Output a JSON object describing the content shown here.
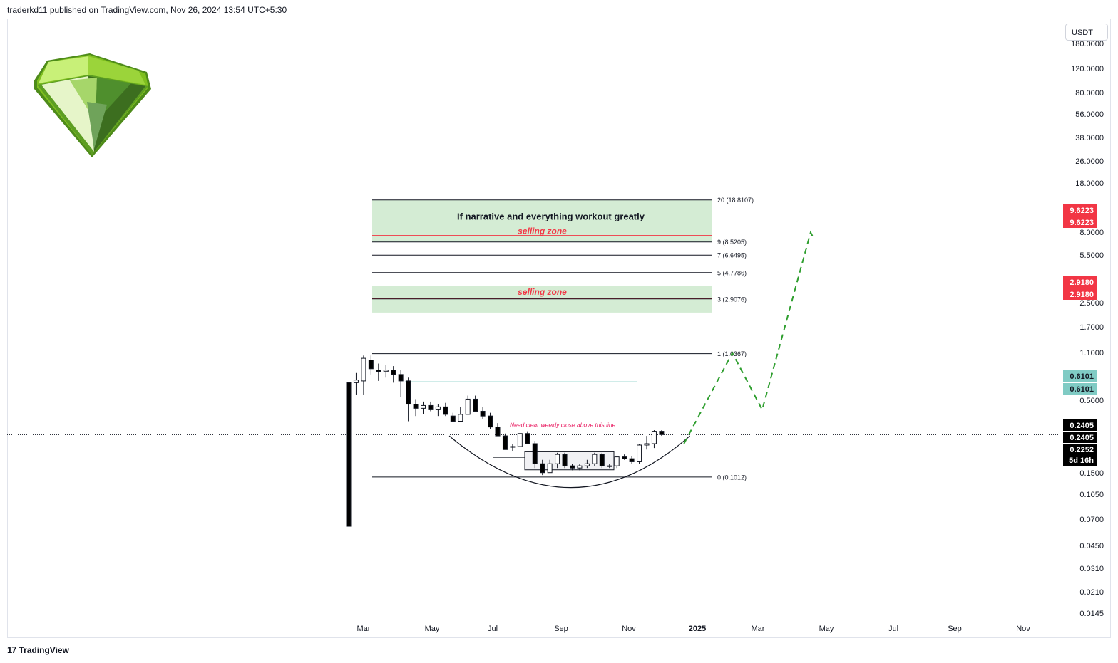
{
  "header": {
    "text": "traderkd11 published on TradingView.com, Nov 26, 2024 13:54 UTC+5:30"
  },
  "footer": {
    "brand": "TradingView",
    "logo_glyph": "17"
  },
  "price_scale": {
    "currency": "USDT",
    "ticks": [
      "180.0000",
      "120.0000",
      "80.0000",
      "56.0000",
      "38.0000",
      "26.0000",
      "18.0000",
      "8.0000",
      "5.5000",
      "2.5000",
      "1.7000",
      "1.1000",
      "0.5000",
      "0.1500",
      "0.1050",
      "0.0700",
      "0.0450",
      "0.0310",
      "0.0210",
      "0.0145"
    ],
    "badges": [
      {
        "text": "9.6223",
        "bg": "#f23645",
        "fg": "#ffffff"
      },
      {
        "text": "9.6223",
        "bg": "#f23645",
        "fg": "#ffffff"
      },
      {
        "text": "2.9180",
        "bg": "#f23645",
        "fg": "#ffffff"
      },
      {
        "text": "2.9180",
        "bg": "#f23645",
        "fg": "#ffffff"
      },
      {
        "text": "0.6101",
        "bg": "#80cbc4",
        "fg": "#131722"
      },
      {
        "text": "0.6101",
        "bg": "#80cbc4",
        "fg": "#131722"
      },
      {
        "text": "0.2405",
        "bg": "#000000",
        "fg": "#ffffff"
      },
      {
        "text": "0.2405",
        "bg": "#000000",
        "fg": "#ffffff"
      },
      {
        "text": "0.2252",
        "bg": "#000000",
        "fg": "#ffffff"
      },
      {
        "text": "5d 16h",
        "bg": "#000000",
        "fg": "#ffffff"
      }
    ]
  },
  "time_axis": {
    "labels": [
      "Mar",
      "May",
      "Jul",
      "Sep",
      "Nov",
      "2025",
      "Mar",
      "May",
      "Jul",
      "Sep",
      "Nov"
    ],
    "bold": [
      false,
      false,
      false,
      false,
      false,
      true,
      false,
      false,
      false,
      false,
      false
    ]
  },
  "annotations": {
    "zone1_title": "If narrative and everything workout greatly",
    "zone1_sub": "selling zone",
    "zone2_sub": "selling zone",
    "weekly_note": "Need clear weekly close above this line"
  },
  "colors": {
    "up": "#ffffff",
    "down": "#000000",
    "zone_fill": "#d4ecd4",
    "projection": "#2e9e2e",
    "red_line": "#f23645",
    "note": "#e91e63",
    "teal_line": "#80cbc4"
  },
  "chart_data": {
    "type": "candlestick",
    "title": "",
    "y_scale": "log",
    "ylim": [
      0.013,
      190
    ],
    "fib_levels": [
      {
        "label": "20 (18.8107)",
        "value": 18.8107
      },
      {
        "label": "9 (8.5205)",
        "value": 8.5205
      },
      {
        "label": "7 (6.6495)",
        "value": 6.6495
      },
      {
        "label": "5 (4.7786)",
        "value": 4.7786
      },
      {
        "label": "3 (2.9076)",
        "value": 2.9076
      },
      {
        "label": "1 (1.0367)",
        "value": 1.0367
      },
      {
        "label": "0 (0.1012)",
        "value": 0.1012
      }
    ],
    "selling_zones": [
      {
        "top": 18.8107,
        "bottom": 8.5205,
        "red_line": 9.6223
      },
      {
        "top": 3.7,
        "bottom": 2.25,
        "red_line": 2.918
      }
    ],
    "resistance_line": 0.6101,
    "weekly_close_line": 0.2405,
    "current_price": 0.2252,
    "range_box": {
      "top": 0.163,
      "bottom": 0.116
    },
    "weekly_candles": [
      {
        "o": 0.6,
        "h": 0.6,
        "l": 0.04,
        "c": 0.04
      },
      {
        "o": 0.6,
        "h": 0.72,
        "l": 0.48,
        "c": 0.63
      },
      {
        "o": 0.62,
        "h": 1.0,
        "l": 0.48,
        "c": 0.95
      },
      {
        "o": 0.92,
        "h": 1.0,
        "l": 0.7,
        "c": 0.78
      },
      {
        "o": 0.76,
        "h": 0.86,
        "l": 0.62,
        "c": 0.74
      },
      {
        "o": 0.74,
        "h": 0.84,
        "l": 0.66,
        "c": 0.76
      },
      {
        "o": 0.76,
        "h": 0.82,
        "l": 0.6,
        "c": 0.7
      },
      {
        "o": 0.7,
        "h": 0.76,
        "l": 0.46,
        "c": 0.62
      },
      {
        "o": 0.62,
        "h": 0.66,
        "l": 0.29,
        "c": 0.4
      },
      {
        "o": 0.4,
        "h": 0.44,
        "l": 0.32,
        "c": 0.37
      },
      {
        "o": 0.37,
        "h": 0.42,
        "l": 0.33,
        "c": 0.39
      },
      {
        "o": 0.39,
        "h": 0.42,
        "l": 0.35,
        "c": 0.36
      },
      {
        "o": 0.36,
        "h": 0.4,
        "l": 0.32,
        "c": 0.38
      },
      {
        "o": 0.38,
        "h": 0.41,
        "l": 0.32,
        "c": 0.33
      },
      {
        "o": 0.32,
        "h": 0.34,
        "l": 0.29,
        "c": 0.29
      },
      {
        "o": 0.29,
        "h": 0.38,
        "l": 0.29,
        "c": 0.33
      },
      {
        "o": 0.33,
        "h": 0.47,
        "l": 0.33,
        "c": 0.44
      },
      {
        "o": 0.44,
        "h": 0.47,
        "l": 0.35,
        "c": 0.35
      },
      {
        "o": 0.35,
        "h": 0.38,
        "l": 0.3,
        "c": 0.32
      },
      {
        "o": 0.32,
        "h": 0.34,
        "l": 0.25,
        "c": 0.26
      },
      {
        "o": 0.26,
        "h": 0.28,
        "l": 0.22,
        "c": 0.22
      },
      {
        "o": 0.22,
        "h": 0.23,
        "l": 0.17,
        "c": 0.17
      },
      {
        "o": 0.18,
        "h": 0.19,
        "l": 0.165,
        "c": 0.18
      },
      {
        "o": 0.18,
        "h": 0.23,
        "l": 0.18,
        "c": 0.23
      },
      {
        "o": 0.23,
        "h": 0.24,
        "l": 0.19,
        "c": 0.19
      },
      {
        "o": 0.19,
        "h": 0.2,
        "l": 0.12,
        "c": 0.13
      },
      {
        "o": 0.13,
        "h": 0.14,
        "l": 0.105,
        "c": 0.11
      },
      {
        "o": 0.11,
        "h": 0.14,
        "l": 0.11,
        "c": 0.13
      },
      {
        "o": 0.13,
        "h": 0.16,
        "l": 0.12,
        "c": 0.155
      },
      {
        "o": 0.155,
        "h": 0.16,
        "l": 0.12,
        "c": 0.125
      },
      {
        "o": 0.125,
        "h": 0.13,
        "l": 0.115,
        "c": 0.12
      },
      {
        "o": 0.12,
        "h": 0.13,
        "l": 0.115,
        "c": 0.125
      },
      {
        "o": 0.125,
        "h": 0.14,
        "l": 0.12,
        "c": 0.13
      },
      {
        "o": 0.13,
        "h": 0.16,
        "l": 0.125,
        "c": 0.155
      },
      {
        "o": 0.155,
        "h": 0.16,
        "l": 0.12,
        "c": 0.125
      },
      {
        "o": 0.125,
        "h": 0.13,
        "l": 0.12,
        "c": 0.125
      },
      {
        "o": 0.125,
        "h": 0.15,
        "l": 0.12,
        "c": 0.148
      },
      {
        "o": 0.148,
        "h": 0.155,
        "l": 0.14,
        "c": 0.143
      },
      {
        "o": 0.143,
        "h": 0.15,
        "l": 0.13,
        "c": 0.135
      },
      {
        "o": 0.135,
        "h": 0.19,
        "l": 0.13,
        "c": 0.185
      },
      {
        "o": 0.185,
        "h": 0.22,
        "l": 0.17,
        "c": 0.19
      },
      {
        "o": 0.19,
        "h": 0.245,
        "l": 0.175,
        "c": 0.24
      },
      {
        "o": 0.24,
        "h": 0.245,
        "l": 0.22,
        "c": 0.2252
      }
    ],
    "projection_path": [
      {
        "t": 45.0,
        "v": 0.19
      },
      {
        "t": 51.5,
        "v": 1.05
      },
      {
        "t": 55.5,
        "v": 0.36
      },
      {
        "t": 62.0,
        "v": 10.2
      },
      {
        "t": 62.5,
        "v": 8.9
      }
    ],
    "cup_curve": {
      "t_start": 13.5,
      "t_bottom": 30.0,
      "t_end": 45.8,
      "v_edge": 0.22,
      "v_bottom": 0.083
    }
  }
}
